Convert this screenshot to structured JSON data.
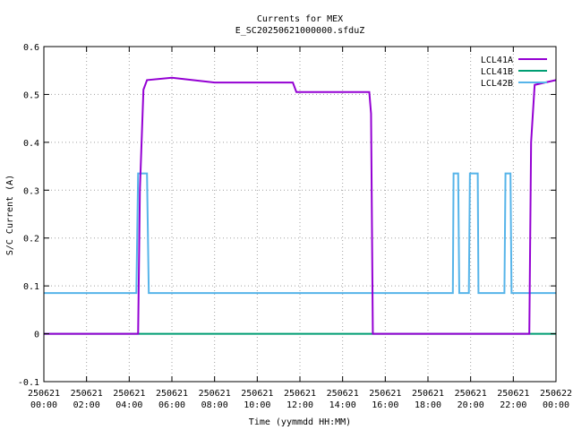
{
  "chart_data": {
    "type": "line",
    "title": "Currents for MEX",
    "subtitle": "E_SC20250621000000.sfduZ",
    "xlabel": "Time (yymmdd HH:MM)",
    "ylabel": "S/C Current (A)",
    "xlim_hours": [
      0,
      24
    ],
    "ylim": [
      -0.1,
      0.6
    ],
    "grid": true,
    "legend_position": "top-right",
    "x_ticks": [
      {
        "date": "250621",
        "time": "00:00"
      },
      {
        "date": "250621",
        "time": "02:00"
      },
      {
        "date": "250621",
        "time": "04:00"
      },
      {
        "date": "250621",
        "time": "06:00"
      },
      {
        "date": "250621",
        "time": "08:00"
      },
      {
        "date": "250621",
        "time": "10:00"
      },
      {
        "date": "250621",
        "time": "12:00"
      },
      {
        "date": "250621",
        "time": "14:00"
      },
      {
        "date": "250621",
        "time": "16:00"
      },
      {
        "date": "250621",
        "time": "18:00"
      },
      {
        "date": "250621",
        "time": "20:00"
      },
      {
        "date": "250621",
        "time": "22:00"
      },
      {
        "date": "250622",
        "time": "00:00"
      }
    ],
    "y_ticks": [
      "-0.1",
      "0",
      "0.1",
      "0.2",
      "0.3",
      "0.4",
      "0.5",
      "0.6"
    ],
    "series": [
      {
        "name": "LCL41A",
        "color": "#9400d3",
        "points": [
          [
            "250621 00:00",
            0.0
          ],
          [
            "250621 04:25",
            0.0
          ],
          [
            "250621 04:30",
            0.3
          ],
          [
            "250621 04:40",
            0.51
          ],
          [
            "250621 04:50",
            0.53
          ],
          [
            "250621 06:00",
            0.535
          ],
          [
            "250621 08:00",
            0.525
          ],
          [
            "250621 10:00",
            0.525
          ],
          [
            "250621 11:40",
            0.525
          ],
          [
            "250621 11:50",
            0.505
          ],
          [
            "250621 14:00",
            0.505
          ],
          [
            "250621 15:15",
            0.505
          ],
          [
            "250621 15:20",
            0.46
          ],
          [
            "250621 15:25",
            0.0
          ],
          [
            "250621 22:45",
            0.0
          ],
          [
            "250621 22:50",
            0.4
          ],
          [
            "250621 23:00",
            0.52
          ],
          [
            "250622 00:00",
            0.53
          ]
        ]
      },
      {
        "name": "LCL41B",
        "color": "#009e73",
        "points": [
          [
            "250621 00:00",
            0.0
          ],
          [
            "250622 00:00",
            0.0
          ]
        ]
      },
      {
        "name": "LCL42B",
        "color": "#56b4e9",
        "points": [
          [
            "250621 00:00",
            0.085
          ],
          [
            "250621 04:20",
            0.085
          ],
          [
            "250621 04:25",
            0.335
          ],
          [
            "250621 04:50",
            0.335
          ],
          [
            "250621 04:55",
            0.085
          ],
          [
            "250621 19:10",
            0.085
          ],
          [
            "250621 19:12",
            0.335
          ],
          [
            "250621 19:25",
            0.335
          ],
          [
            "250621 19:28",
            0.085
          ],
          [
            "250621 19:55",
            0.085
          ],
          [
            "250621 19:58",
            0.335
          ],
          [
            "250621 20:20",
            0.335
          ],
          [
            "250621 20:22",
            0.085
          ],
          [
            "250621 21:35",
            0.085
          ],
          [
            "250621 21:38",
            0.335
          ],
          [
            "250621 21:52",
            0.335
          ],
          [
            "250621 21:55",
            0.085
          ],
          [
            "250622 00:00",
            0.085
          ]
        ]
      }
    ]
  }
}
